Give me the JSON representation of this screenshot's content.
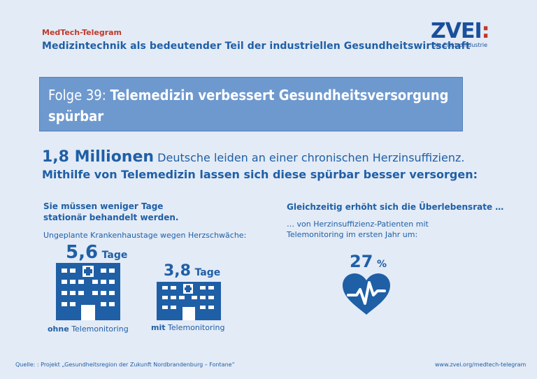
{
  "header": {
    "kicker": "MedTech-Telegram",
    "subtitle": "Medizintechnik als bedeutender Teil der industriellen Gesundheitswirtschaft"
  },
  "logo": {
    "mark": "ZVEI",
    "mark_colon": ":",
    "tagline": "Die Elektroindustrie"
  },
  "banner": {
    "prefix": "Folge 39:",
    "title": "Telemedizin verbessert Gesundheitsversorgung",
    "title_line2": "spürbar"
  },
  "headline": {
    "big": "1,8 Millionen",
    "rest": "Deutsche leiden an einer chronischen Herzinsuffizienz.",
    "line2": "Mithilfe von Telemedizin lassen sich diese spürbar besser versorgen:"
  },
  "left": {
    "heading_line1": "Sie müssen weniger Tage",
    "heading_line2": "stationär behandelt werden.",
    "sub": "Ungeplante Krankenhaustage wegen Herzschwäche:",
    "without": {
      "value": "5,6",
      "unit": "Tage",
      "label_strong": "ohne",
      "label_rest": "Telemonitoring"
    },
    "with": {
      "value": "3,8",
      "unit": "Tage",
      "label_strong": "mit",
      "label_rest": "Telemonitoring"
    }
  },
  "right": {
    "heading": "Gleichzeitig erhöht sich die Überlebensrate …",
    "sub_line1": "… von Herzinsuffizienz-Patienten mit",
    "sub_line2": "Telemonitoring im ersten Jahr um:",
    "value": "27",
    "unit": "%"
  },
  "footer": {
    "source": "Quelle: : Projekt „Gesundheitsregion der Zukunft Nordbrandenburg – Fontane“",
    "url": "www.zvei.org/medtech-telegram"
  },
  "icons": {
    "hospital": "hospital-icon",
    "heart": "heart-pulse-icon"
  },
  "colors": {
    "background": "#e3ebf6",
    "primary": "#1f5fa6",
    "accent_red": "#c0392b",
    "banner": "#6e99cf"
  }
}
